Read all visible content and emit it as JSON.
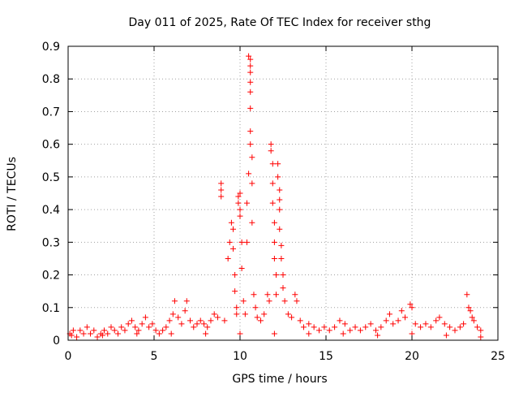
{
  "chart_data": {
    "type": "scatter",
    "title": "Day 011 of 2025, Rate Of TEC Index for receiver sthg",
    "xlabel": "GPS time / hours",
    "ylabel": "ROTI / TECUs",
    "xlim": [
      0,
      25
    ],
    "ylim": [
      0,
      0.9
    ],
    "xticks": [
      0,
      5,
      10,
      15,
      20,
      25
    ],
    "yticks": [
      0,
      0.1,
      0.2,
      0.3,
      0.4,
      0.5,
      0.6,
      0.7,
      0.8,
      0.9
    ],
    "xtick_labels": [
      "0",
      "5",
      "10",
      "15",
      "20",
      "25"
    ],
    "ytick_labels": [
      "0",
      "0.1",
      "0.2",
      "0.3",
      "0.4",
      "0.5",
      "0.6",
      "0.7",
      "0.8",
      "0.9"
    ],
    "grid": true,
    "marker": "+",
    "color": "#ff0000",
    "points": [
      [
        0.1,
        0.02
      ],
      [
        0.3,
        0.03
      ],
      [
        0.5,
        0.01
      ],
      [
        0.7,
        0.03
      ],
      [
        0.9,
        0.02
      ],
      [
        1.1,
        0.04
      ],
      [
        1.3,
        0.02
      ],
      [
        1.5,
        0.03
      ],
      [
        1.7,
        0.01
      ],
      [
        1.9,
        0.02
      ],
      [
        2.1,
        0.03
      ],
      [
        2.3,
        0.02
      ],
      [
        2.5,
        0.04
      ],
      [
        2.7,
        0.03
      ],
      [
        2.9,
        0.02
      ],
      [
        3.1,
        0.04
      ],
      [
        3.3,
        0.03
      ],
      [
        3.5,
        0.05
      ],
      [
        3.7,
        0.06
      ],
      [
        3.9,
        0.04
      ],
      [
        4.1,
        0.03
      ],
      [
        4.3,
        0.05
      ],
      [
        4.5,
        0.07
      ],
      [
        4.7,
        0.04
      ],
      [
        4.9,
        0.05
      ],
      [
        5.1,
        0.03
      ],
      [
        5.3,
        0.02
      ],
      [
        5.5,
        0.03
      ],
      [
        5.7,
        0.04
      ],
      [
        5.9,
        0.06
      ],
      [
        6.1,
        0.08
      ],
      [
        6.2,
        0.12
      ],
      [
        6.4,
        0.07
      ],
      [
        6.6,
        0.05
      ],
      [
        6.8,
        0.09
      ],
      [
        6.9,
        0.12
      ],
      [
        7.1,
        0.06
      ],
      [
        7.3,
        0.04
      ],
      [
        7.5,
        0.05
      ],
      [
        7.7,
        0.06
      ],
      [
        7.9,
        0.05
      ],
      [
        8.1,
        0.04
      ],
      [
        8.3,
        0.06
      ],
      [
        8.5,
        0.08
      ],
      [
        8.7,
        0.07
      ],
      [
        8.9,
        0.48
      ],
      [
        8.9,
        0.46
      ],
      [
        8.9,
        0.44
      ],
      [
        9.1,
        0.06
      ],
      [
        9.3,
        0.25
      ],
      [
        9.4,
        0.3
      ],
      [
        9.5,
        0.36
      ],
      [
        9.6,
        0.34
      ],
      [
        9.6,
        0.28
      ],
      [
        9.7,
        0.2
      ],
      [
        9.7,
        0.15
      ],
      [
        9.8,
        0.1
      ],
      [
        9.8,
        0.08
      ],
      [
        9.9,
        0.44
      ],
      [
        9.9,
        0.42
      ],
      [
        10.0,
        0.45
      ],
      [
        10.0,
        0.4
      ],
      [
        10.0,
        0.38
      ],
      [
        10.1,
        0.3
      ],
      [
        10.1,
        0.22
      ],
      [
        10.2,
        0.12
      ],
      [
        10.3,
        0.08
      ],
      [
        10.4,
        0.3
      ],
      [
        10.4,
        0.42
      ],
      [
        10.5,
        0.51
      ],
      [
        10.5,
        0.87
      ],
      [
        10.6,
        0.86
      ],
      [
        10.6,
        0.84
      ],
      [
        10.6,
        0.82
      ],
      [
        10.6,
        0.79
      ],
      [
        10.6,
        0.76
      ],
      [
        10.6,
        0.71
      ],
      [
        10.6,
        0.64
      ],
      [
        10.6,
        0.6
      ],
      [
        10.7,
        0.56
      ],
      [
        10.7,
        0.48
      ],
      [
        10.7,
        0.36
      ],
      [
        10.8,
        0.14
      ],
      [
        10.9,
        0.1
      ],
      [
        11.0,
        0.07
      ],
      [
        11.2,
        0.06
      ],
      [
        11.4,
        0.08
      ],
      [
        11.6,
        0.14
      ],
      [
        11.7,
        0.12
      ],
      [
        11.8,
        0.6
      ],
      [
        11.8,
        0.58
      ],
      [
        11.9,
        0.54
      ],
      [
        11.9,
        0.48
      ],
      [
        11.9,
        0.42
      ],
      [
        12.0,
        0.36
      ],
      [
        12.0,
        0.3
      ],
      [
        12.0,
        0.25
      ],
      [
        12.1,
        0.2
      ],
      [
        12.1,
        0.14
      ],
      [
        12.2,
        0.54
      ],
      [
        12.2,
        0.5
      ],
      [
        12.3,
        0.46
      ],
      [
        12.3,
        0.43
      ],
      [
        12.3,
        0.4
      ],
      [
        12.3,
        0.34
      ],
      [
        12.4,
        0.29
      ],
      [
        12.4,
        0.25
      ],
      [
        12.5,
        0.2
      ],
      [
        12.5,
        0.16
      ],
      [
        12.6,
        0.12
      ],
      [
        12.8,
        0.08
      ],
      [
        13.0,
        0.07
      ],
      [
        13.2,
        0.14
      ],
      [
        13.3,
        0.12
      ],
      [
        13.5,
        0.06
      ],
      [
        13.7,
        0.04
      ],
      [
        14.0,
        0.05
      ],
      [
        14.3,
        0.04
      ],
      [
        14.6,
        0.03
      ],
      [
        14.9,
        0.04
      ],
      [
        15.2,
        0.03
      ],
      [
        15.5,
        0.04
      ],
      [
        15.8,
        0.06
      ],
      [
        16.1,
        0.05
      ],
      [
        16.4,
        0.03
      ],
      [
        16.7,
        0.04
      ],
      [
        17.0,
        0.03
      ],
      [
        17.3,
        0.04
      ],
      [
        17.6,
        0.05
      ],
      [
        17.9,
        0.03
      ],
      [
        18.2,
        0.04
      ],
      [
        18.5,
        0.06
      ],
      [
        18.7,
        0.08
      ],
      [
        18.9,
        0.05
      ],
      [
        19.2,
        0.06
      ],
      [
        19.4,
        0.09
      ],
      [
        19.6,
        0.07
      ],
      [
        19.9,
        0.11
      ],
      [
        20.0,
        0.1
      ],
      [
        20.2,
        0.05
      ],
      [
        20.5,
        0.04
      ],
      [
        20.8,
        0.05
      ],
      [
        21.1,
        0.04
      ],
      [
        21.4,
        0.06
      ],
      [
        21.6,
        0.07
      ],
      [
        21.9,
        0.05
      ],
      [
        22.2,
        0.04
      ],
      [
        22.5,
        0.03
      ],
      [
        22.8,
        0.04
      ],
      [
        23.0,
        0.05
      ],
      [
        23.2,
        0.14
      ],
      [
        23.3,
        0.1
      ],
      [
        23.4,
        0.09
      ],
      [
        23.5,
        0.07
      ],
      [
        23.6,
        0.06
      ],
      [
        23.8,
        0.04
      ],
      [
        24.0,
        0.03
      ],
      [
        0.2,
        0.015
      ],
      [
        2.0,
        0.015
      ],
      [
        4.0,
        0.02
      ],
      [
        6.0,
        0.02
      ],
      [
        8.0,
        0.02
      ],
      [
        10.0,
        0.02
      ],
      [
        12.0,
        0.02
      ],
      [
        14.0,
        0.02
      ],
      [
        16.0,
        0.02
      ],
      [
        18.0,
        0.015
      ],
      [
        20.0,
        0.02
      ],
      [
        22.0,
        0.015
      ],
      [
        24.0,
        0.01
      ]
    ]
  }
}
